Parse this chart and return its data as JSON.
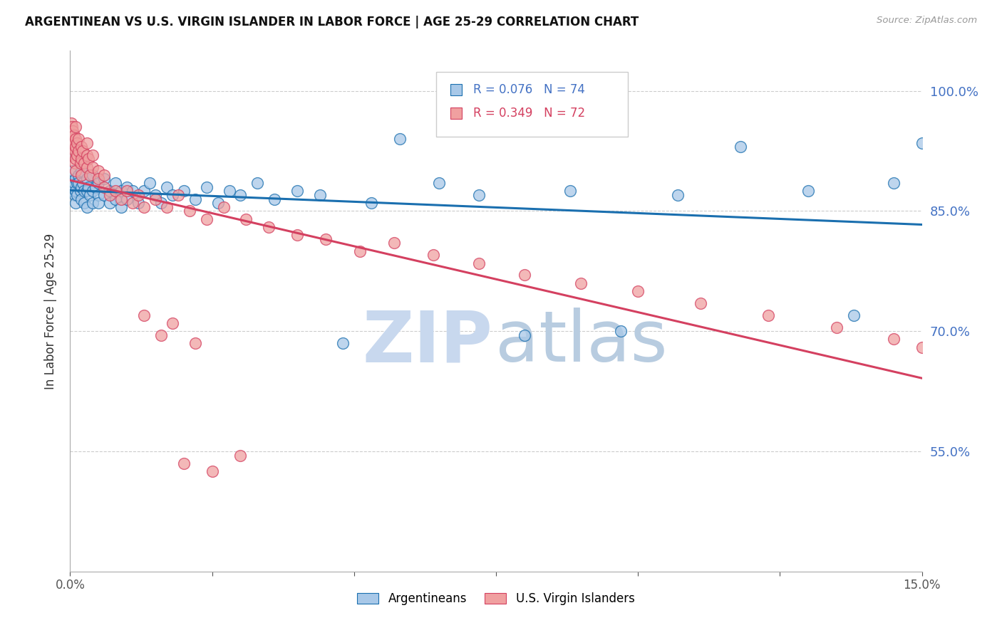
{
  "title": "ARGENTINEAN VS U.S. VIRGIN ISLANDER IN LABOR FORCE | AGE 25-29 CORRELATION CHART",
  "source": "Source: ZipAtlas.com",
  "ylabel": "In Labor Force | Age 25-29",
  "legend_blue_r": "R = 0.076",
  "legend_blue_n": "N = 74",
  "legend_pink_r": "R = 0.349",
  "legend_pink_n": "N = 72",
  "blue_color": "#a8c8e8",
  "pink_color": "#f0a0a0",
  "trendline_blue": "#1a6faf",
  "trendline_pink": "#d44060",
  "watermark_zip_color": "#c8d8ee",
  "watermark_atlas_color": "#b8cce0",
  "xlim": [
    0.0,
    0.15
  ],
  "ylim": [
    0.4,
    1.05
  ],
  "blue_scatter_x": [
    0.0003,
    0.0005,
    0.0005,
    0.0007,
    0.0008,
    0.001,
    0.001,
    0.001,
    0.001,
    0.0012,
    0.0012,
    0.0015,
    0.0015,
    0.0018,
    0.002,
    0.002,
    0.002,
    0.0022,
    0.0025,
    0.0025,
    0.003,
    0.003,
    0.003,
    0.0032,
    0.0035,
    0.004,
    0.004,
    0.004,
    0.0045,
    0.005,
    0.005,
    0.005,
    0.006,
    0.006,
    0.007,
    0.007,
    0.008,
    0.008,
    0.009,
    0.009,
    0.01,
    0.01,
    0.011,
    0.012,
    0.013,
    0.014,
    0.015,
    0.016,
    0.017,
    0.018,
    0.02,
    0.022,
    0.024,
    0.026,
    0.028,
    0.03,
    0.033,
    0.036,
    0.04,
    0.044,
    0.048,
    0.053,
    0.058,
    0.065,
    0.072,
    0.08,
    0.088,
    0.097,
    0.107,
    0.118,
    0.13,
    0.138,
    0.145,
    0.15
  ],
  "blue_scatter_y": [
    0.875,
    0.88,
    0.9,
    0.885,
    0.87,
    0.89,
    0.875,
    0.86,
    0.92,
    0.885,
    0.87,
    0.895,
    0.885,
    0.875,
    0.88,
    0.865,
    0.9,
    0.885,
    0.875,
    0.86,
    0.89,
    0.875,
    0.855,
    0.88,
    0.87,
    0.895,
    0.875,
    0.86,
    0.88,
    0.87,
    0.885,
    0.86,
    0.89,
    0.87,
    0.875,
    0.86,
    0.885,
    0.865,
    0.875,
    0.855,
    0.88,
    0.865,
    0.875,
    0.86,
    0.875,
    0.885,
    0.87,
    0.86,
    0.88,
    0.87,
    0.875,
    0.865,
    0.88,
    0.86,
    0.875,
    0.87,
    0.885,
    0.865,
    0.875,
    0.87,
    0.685,
    0.86,
    0.94,
    0.885,
    0.87,
    0.695,
    0.875,
    0.7,
    0.87,
    0.93,
    0.875,
    0.72,
    0.885,
    0.935
  ],
  "pink_scatter_x": [
    0.0002,
    0.0003,
    0.0003,
    0.0004,
    0.0005,
    0.0005,
    0.0006,
    0.0007,
    0.0008,
    0.0008,
    0.001,
    0.001,
    0.001,
    0.001,
    0.001,
    0.0012,
    0.0012,
    0.0015,
    0.0015,
    0.0018,
    0.002,
    0.002,
    0.002,
    0.0022,
    0.0025,
    0.003,
    0.003,
    0.003,
    0.0032,
    0.0035,
    0.004,
    0.004,
    0.005,
    0.005,
    0.006,
    0.006,
    0.007,
    0.008,
    0.009,
    0.01,
    0.011,
    0.012,
    0.013,
    0.015,
    0.017,
    0.019,
    0.021,
    0.024,
    0.027,
    0.031,
    0.035,
    0.04,
    0.045,
    0.051,
    0.057,
    0.064,
    0.072,
    0.08,
    0.09,
    0.1,
    0.111,
    0.123,
    0.135,
    0.145,
    0.15,
    0.03,
    0.02,
    0.025,
    0.016,
    0.022,
    0.013,
    0.018
  ],
  "pink_scatter_y": [
    0.96,
    0.93,
    0.955,
    0.94,
    0.92,
    0.95,
    0.935,
    0.945,
    0.925,
    0.91,
    0.93,
    0.915,
    0.94,
    0.955,
    0.9,
    0.935,
    0.92,
    0.94,
    0.925,
    0.91,
    0.93,
    0.915,
    0.895,
    0.925,
    0.91,
    0.92,
    0.935,
    0.905,
    0.915,
    0.895,
    0.905,
    0.92,
    0.9,
    0.89,
    0.895,
    0.88,
    0.87,
    0.875,
    0.865,
    0.875,
    0.86,
    0.87,
    0.855,
    0.865,
    0.855,
    0.87,
    0.85,
    0.84,
    0.855,
    0.84,
    0.83,
    0.82,
    0.815,
    0.8,
    0.81,
    0.795,
    0.785,
    0.77,
    0.76,
    0.75,
    0.735,
    0.72,
    0.705,
    0.69,
    0.68,
    0.545,
    0.535,
    0.525,
    0.695,
    0.685,
    0.72,
    0.71
  ]
}
